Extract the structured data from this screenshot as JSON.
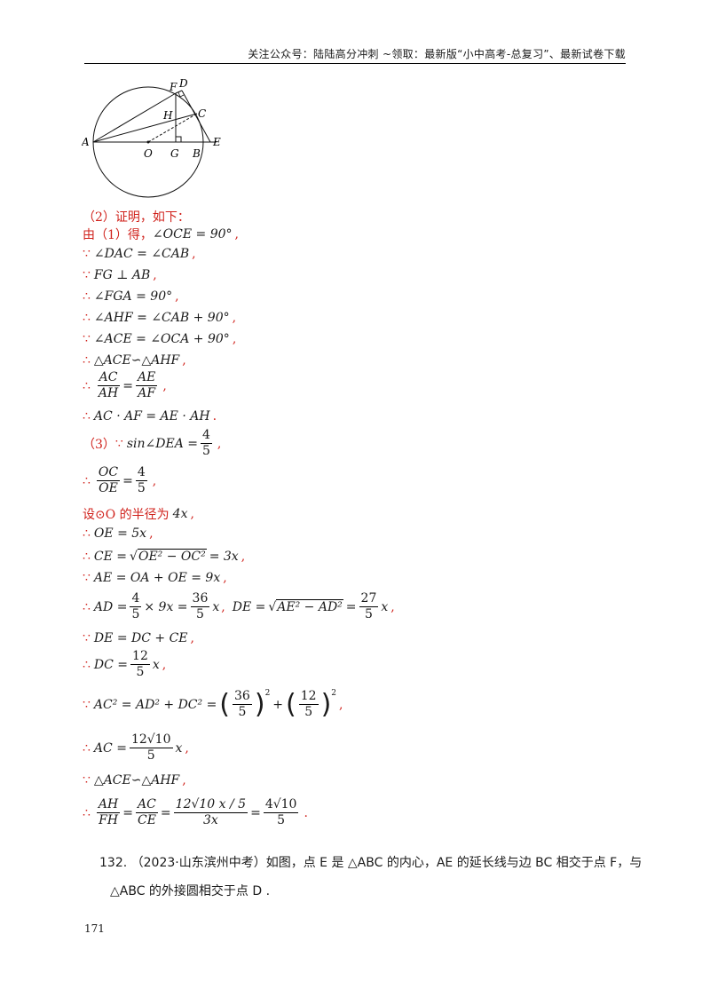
{
  "header": {
    "text": "关注公众号：陆陆高分冲刺 ~领取：最新版“小中高考-总复习”、最新试卷下载"
  },
  "figure": {
    "labels": {
      "F": "F",
      "D": "D",
      "H": "H",
      "C": "C",
      "A": "A",
      "O": "O",
      "G": "G",
      "B": "B",
      "E": "E"
    }
  },
  "solution": {
    "part2_title": "（2）证明，如下：",
    "l1_prefix": "由（1）得，",
    "l1_math": "∠OCE = 90°",
    "l2": "∠DAC = ∠CAB",
    "l3": "FG ⊥ AB",
    "l4": "∠FGA = 90°",
    "l5": "∠AHF = ∠CAB + 90°",
    "l6": "∠ACE = ∠OCA + 90°",
    "l7": "△ACE∽△AHF",
    "l8_f1_num": "AC",
    "l8_f1_den": "AH",
    "l8_f2_num": "AE",
    "l8_f2_den": "AF",
    "l9": "AC · AF = AE · AH",
    "part3_title": "（3）",
    "l10_math": "sin∠DEA =",
    "l10_num": "4",
    "l10_den": "5",
    "l11_num": "OC",
    "l11_den": "OE",
    "l11_rnum": "4",
    "l11_rden": "5",
    "l12_prefix": "设⊙O 的半径为",
    "l12_math": "4x",
    "l13": "OE = 5x",
    "l14_a": "CE =",
    "l14_rad": "OE² − OC²",
    "l14_b": "= 3x",
    "l15": "AE = OA + OE = 9x",
    "l16_a": "AD =",
    "l16_f1n": "4",
    "l16_f1d": "5",
    "l16_b": "× 9x =",
    "l16_f2n": "36",
    "l16_f2d": "5",
    "l16_c": "x",
    "l16_d": "DE =",
    "l16_rad": "AE² − AD²",
    "l16_e": "=",
    "l16_f3n": "27",
    "l16_f3d": "5",
    "l16_g": "x",
    "l17": "DE = DC + CE",
    "l18_a": "DC =",
    "l18_n": "12",
    "l18_d": "5",
    "l18_b": "x",
    "l19_a": "AC² = AD² + DC² =",
    "l19_f1n": "36",
    "l19_f1d": "5",
    "l19_plus": "+",
    "l19_f2n": "12",
    "l19_f2d": "5",
    "l19_sq": "2",
    "l20_a": "AC =",
    "l20_n": "12√10",
    "l20_d": "5",
    "l20_b": "x",
    "l21": "△ACE∽△AHF",
    "l22_f1n": "AH",
    "l22_f1d": "FH",
    "l22_f2n": "AC",
    "l22_f2d": "CE",
    "l22_f3n": "12√10 x / 5",
    "l22_f3d": "3x",
    "l22_f4n": "4√10",
    "l22_f4d": "5"
  },
  "problem": {
    "number": "132.",
    "line1": "（2023·山东滨州中考）如图，点 E 是 △ABC 的内心，AE 的延长线与边 BC 相交于点 F，与",
    "line2": "△ABC 的外接圆相交于点 D ."
  },
  "page_number": "171"
}
